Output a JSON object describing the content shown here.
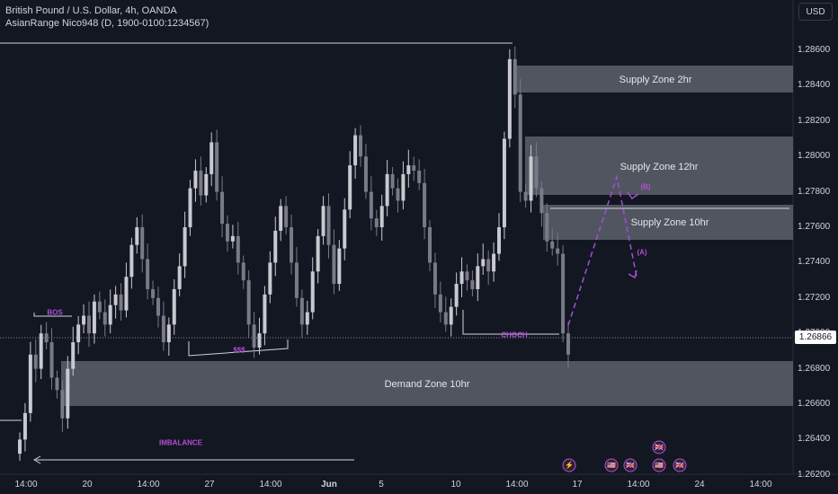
{
  "header": {
    "symbol_title": "British Pound / U.S. Dollar, 4h, OANDA",
    "indicator": "AsianRange Nico948 (D, 1900-0100:1234567)",
    "currency_button": "USD"
  },
  "current_price_label": "1.26866",
  "y_axis": {
    "ticks": [
      "1.28600",
      "1.28400",
      "1.28200",
      "1.28000",
      "1.27800",
      "1.27600",
      "1.27400",
      "1.27200",
      "1.27000",
      "1.26800",
      "1.26600",
      "1.26400",
      "1.26200"
    ],
    "tick_values": [
      1.286,
      1.284,
      1.282,
      1.28,
      1.278,
      1.276,
      1.274,
      1.272,
      1.27,
      1.268,
      1.266,
      1.264,
      1.262
    ]
  },
  "x_axis": {
    "ticks": [
      "14:00",
      "20",
      "14:00",
      "27",
      "14:00",
      "Jun",
      "5",
      "10",
      "14:00",
      "17",
      "14:00",
      "24",
      "14:00"
    ]
  },
  "zones": [
    {
      "label": "Supply Zone 2hr"
    },
    {
      "label": "Supply Zone 12hr"
    },
    {
      "label": "Supply Zone 10hr"
    },
    {
      "label": "Demand Zone 10hr"
    }
  ],
  "annotations": {
    "bos": "BOS",
    "liquidity": "$$$",
    "choch": "CHOCH",
    "imbalance": "IMBALANCE",
    "wave_b": "(B)",
    "wave_a": "(A)"
  },
  "colors": {
    "background": "#131722",
    "zone": "#5d606b",
    "annotation": "#b14fd6",
    "candle": "#c7c9cf"
  },
  "events": [
    {
      "icon": "lightning-icon",
      "glyph": "⚡"
    },
    {
      "icon": "us-flag-icon",
      "glyph": "🇺🇸"
    },
    {
      "icon": "uk-flag-icon",
      "glyph": "🇬🇧"
    },
    {
      "icon": "uk-flag-icon",
      "glyph": "🇬🇧"
    },
    {
      "icon": "us-flag-icon",
      "glyph": "🇺🇸"
    },
    {
      "icon": "uk-flag-icon",
      "glyph": "🇬🇧"
    }
  ],
  "chart_data": {
    "type": "candlestick",
    "title": "British Pound / U.S. Dollar, 4h, OANDA",
    "ylim": [
      1.2608,
      1.2874
    ],
    "close_series": [
      1.264,
      1.2655,
      1.2688,
      1.268,
      1.27,
      1.2695,
      1.2675,
      1.2668,
      1.2652,
      1.268,
      1.2695,
      1.2705,
      1.271,
      1.27,
      1.2718,
      1.2712,
      1.2705,
      1.2716,
      1.2722,
      1.2713,
      1.2732,
      1.275,
      1.276,
      1.2742,
      1.2725,
      1.272,
      1.271,
      1.2695,
      1.2705,
      1.2725,
      1.2738,
      1.276,
      1.2782,
      1.2792,
      1.2778,
      1.279,
      1.2808,
      1.278,
      1.2762,
      1.2752,
      1.2755,
      1.274,
      1.273,
      1.2705,
      1.2692,
      1.27,
      1.2722,
      1.274,
      1.2758,
      1.2772,
      1.276,
      1.274,
      1.272,
      1.2705,
      1.2712,
      1.2735,
      1.2755,
      1.2772,
      1.275,
      1.2728,
      1.2748,
      1.277,
      1.2795,
      1.2812,
      1.28,
      1.278,
      1.2765,
      1.276,
      1.2772,
      1.279,
      1.2782,
      1.2775,
      1.279,
      1.2795,
      1.2792,
      1.2785,
      1.276,
      1.274,
      1.2722,
      1.2712,
      1.2705,
      1.2715,
      1.2728,
      1.2735,
      1.273,
      1.2725,
      1.2738,
      1.2742,
      1.2735,
      1.2745,
      1.276,
      1.281,
      1.2855,
      1.2835,
      1.278,
      1.2775,
      1.28,
      1.2782,
      1.2768,
      1.2752,
      1.2748,
      1.2745,
      1.27,
      1.2688
    ]
  }
}
